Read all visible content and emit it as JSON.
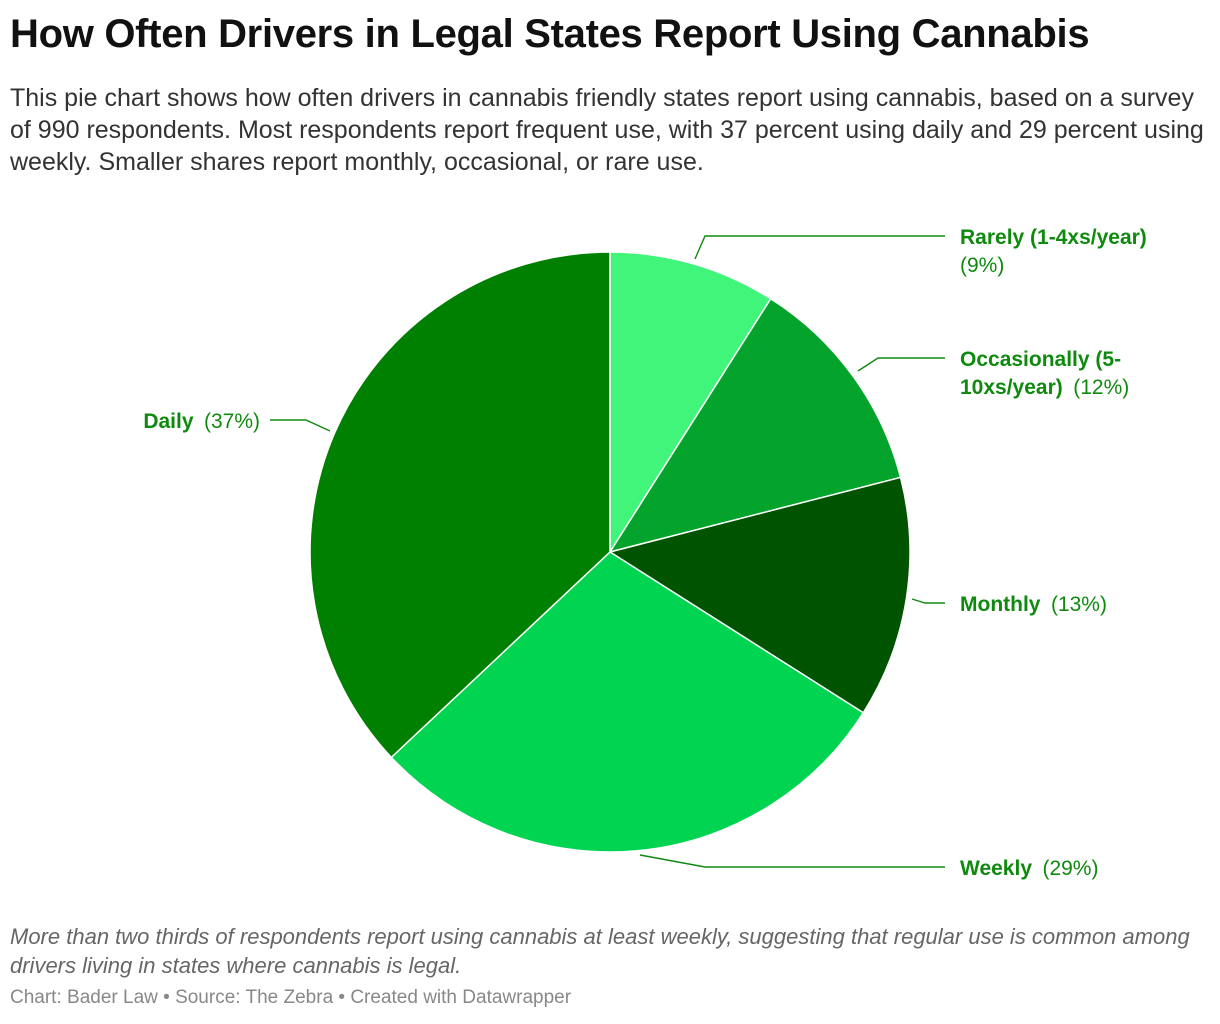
{
  "header": {
    "title": "How Often Drivers in Legal States Report Using Cannabis",
    "subtitle": "This pie chart shows how often drivers in cannabis friendly states report using cannabis, based on a survey of 990 respondents. Most respondents report frequent use, with 37 percent using daily and 29 percent using weekly. Smaller shares report monthly, occasional, or rare use."
  },
  "chart_data": {
    "type": "pie",
    "title": "How Often Drivers in Legal States Report Using Cannabis",
    "categories": [
      "Rarely (1-4xs/year)",
      "Occasionally (5-10xs/year)",
      "Monthly",
      "Weekly",
      "Daily"
    ],
    "values": [
      9,
      12,
      13,
      29,
      37
    ],
    "value_labels": [
      "(9%)",
      "(12%)",
      "(13%)",
      "(29%)",
      "(37%)"
    ],
    "colors": [
      "#41f57a",
      "#04a42c",
      "#005400",
      "#00d450",
      "#008000"
    ],
    "label_color": "#0f8a0f",
    "start": "top, clockwise"
  },
  "labels": {
    "rarely_line1": "Rarely (1-4xs/year)",
    "rarely_line2": "(9%)",
    "occasionally_line1": "Occasionally (5-",
    "occasionally_line2_bold": "10xs/year)",
    "occasionally_line2_val": "(12%)",
    "monthly_name": "Monthly",
    "monthly_val": "(13%)",
    "weekly_name": "Weekly",
    "weekly_val": "(29%)",
    "daily_name": "Daily",
    "daily_val": "(37%)"
  },
  "notes": "More than two thirds of respondents report using cannabis at least weekly, suggesting that regular use is common among drivers living in states where cannabis is legal.",
  "footer": "Chart: Bader Law • Source: The Zebra • Created with Datawrapper"
}
